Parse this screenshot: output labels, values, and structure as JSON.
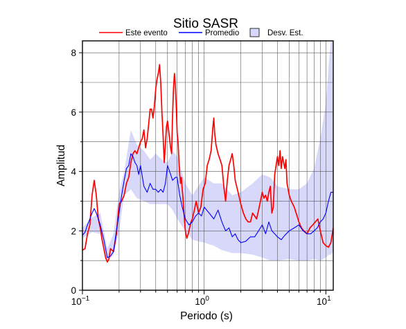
{
  "chart_data": {
    "type": "line",
    "title": "Sitio SASR",
    "xlabel": "Periodo (s)",
    "ylabel": "Amplitud",
    "xscale": "log",
    "xlim": [
      0.1,
      11.5
    ],
    "ylim": [
      0,
      8.4
    ],
    "grid": true,
    "legend_position": "top",
    "x_ticks": [
      {
        "value": 0.1,
        "base": "10",
        "exp": "−1"
      },
      {
        "value": 1,
        "base": "10",
        "exp": "0"
      },
      {
        "value": 10,
        "base": "10",
        "exp": "1"
      }
    ],
    "y_ticks": [
      0,
      2,
      4,
      6,
      8
    ],
    "y_tick_labels": [
      "0",
      "2",
      "4",
      "6",
      "8"
    ],
    "legend": [
      {
        "label": "Este evento",
        "kind": "line",
        "color": "#ff0000"
      },
      {
        "label": "Promedio",
        "kind": "line",
        "color": "#0000ff"
      },
      {
        "label": "Desv. Est.",
        "kind": "patch",
        "color": "#d8d8fa"
      }
    ],
    "band": {
      "name": "Desv. Est.",
      "color": "#d8d8fa",
      "x": [
        0.1,
        0.12,
        0.14,
        0.16,
        0.18,
        0.2,
        0.22,
        0.25,
        0.28,
        0.32,
        0.36,
        0.4,
        0.45,
        0.5,
        0.55,
        0.6,
        0.7,
        0.8,
        1.0,
        1.2,
        1.4,
        1.7,
        2.0,
        2.5,
        3.0,
        3.5,
        4.0,
        5.0,
        6.0,
        7.0,
        8.0,
        9.0,
        10.0,
        10.6,
        11.0,
        11.5
      ],
      "upper": [
        2.1,
        2.45,
        2.6,
        1.4,
        1.9,
        3.3,
        4.0,
        5.4,
        4.9,
        4.7,
        4.4,
        4.6,
        4.4,
        4.3,
        4.7,
        4.5,
        3.6,
        3.2,
        3.8,
        3.6,
        3.6,
        3.2,
        3.3,
        3.6,
        3.9,
        3.8,
        3.5,
        3.4,
        3.4,
        3.6,
        4.1,
        5.1,
        6.3,
        7.7,
        8.4,
        8.4
      ],
      "lower": [
        1.75,
        1.95,
        1.9,
        0.95,
        1.2,
        2.0,
        3.2,
        3.4,
        3.1,
        3.0,
        2.9,
        2.9,
        2.9,
        2.9,
        2.7,
        2.4,
        2.0,
        1.7,
        1.6,
        1.5,
        1.35,
        1.25,
        1.25,
        1.2,
        1.1,
        1.0,
        1.0,
        1.05,
        1.0,
        1.0,
        1.05,
        1.0,
        1.1,
        1.2,
        1.2,
        1.3
      ]
    },
    "series": [
      {
        "name": "Este evento",
        "color": "#ff0000",
        "x": [
          0.1,
          0.105,
          0.11,
          0.115,
          0.12,
          0.125,
          0.13,
          0.135,
          0.14,
          0.145,
          0.15,
          0.155,
          0.16,
          0.165,
          0.17,
          0.18,
          0.19,
          0.2,
          0.21,
          0.22,
          0.23,
          0.24,
          0.25,
          0.26,
          0.27,
          0.28,
          0.29,
          0.3,
          0.31,
          0.32,
          0.33,
          0.34,
          0.35,
          0.36,
          0.37,
          0.38,
          0.39,
          0.4,
          0.41,
          0.42,
          0.43,
          0.44,
          0.45,
          0.46,
          0.47,
          0.48,
          0.49,
          0.5,
          0.51,
          0.52,
          0.53,
          0.54,
          0.55,
          0.56,
          0.57,
          0.58,
          0.59,
          0.6,
          0.61,
          0.62,
          0.63,
          0.64,
          0.65,
          0.66,
          0.67,
          0.68,
          0.7,
          0.72,
          0.74,
          0.76,
          0.78,
          0.8,
          0.83,
          0.86,
          0.9,
          0.94,
          0.98,
          1.02,
          1.06,
          1.1,
          1.14,
          1.18,
          1.2,
          1.22,
          1.25,
          1.3,
          1.35,
          1.4,
          1.45,
          1.5,
          1.55,
          1.6,
          1.65,
          1.7,
          1.75,
          1.8,
          1.9,
          2.0,
          2.1,
          2.2,
          2.3,
          2.4,
          2.5,
          2.6,
          2.7,
          2.8,
          2.9,
          3.0,
          3.1,
          3.2,
          3.3,
          3.4,
          3.5,
          3.6,
          3.7,
          3.8,
          3.9,
          4.0,
          4.1,
          4.2,
          4.3,
          4.4,
          4.5,
          4.6,
          4.7,
          4.8,
          5.0,
          5.2,
          5.5,
          5.8,
          6.0,
          6.3,
          6.6,
          7.0,
          7.4,
          7.8,
          8.2,
          8.6,
          9.0,
          9.5,
          10.0,
          10.5,
          11.0,
          11.5
        ],
        "y": [
          1.35,
          1.4,
          1.9,
          2.2,
          3.2,
          3.7,
          3.2,
          2.4,
          2.1,
          1.7,
          1.4,
          1.1,
          0.95,
          1.05,
          1.4,
          1.3,
          1.9,
          2.9,
          3.0,
          3.2,
          3.6,
          3.8,
          4.3,
          4.6,
          4.7,
          4.6,
          4.8,
          5.0,
          5.1,
          5.4,
          4.8,
          5.1,
          5.6,
          6.1,
          6.1,
          5.8,
          6.2,
          6.8,
          7.1,
          7.3,
          7.6,
          7.0,
          6.0,
          5.2,
          4.3,
          4.9,
          5.5,
          5.7,
          5.4,
          5.1,
          4.8,
          4.6,
          5.9,
          6.8,
          7.3,
          6.9,
          6.2,
          5.3,
          5.0,
          4.4,
          3.9,
          3.6,
          3.8,
          3.4,
          3.1,
          2.7,
          2.0,
          1.75,
          1.9,
          2.1,
          2.3,
          2.4,
          2.7,
          3.0,
          2.6,
          2.8,
          3.4,
          3.6,
          4.2,
          4.4,
          4.7,
          5.5,
          5.8,
          5.3,
          4.9,
          4.6,
          4.4,
          4.2,
          3.5,
          3.0,
          3.7,
          4.2,
          4.4,
          4.6,
          4.2,
          3.7,
          3.3,
          2.9,
          2.6,
          2.4,
          2.3,
          2.3,
          2.6,
          2.5,
          2.4,
          2.7,
          3.0,
          3.3,
          3.1,
          3.2,
          3.0,
          3.3,
          3.5,
          2.6,
          2.8,
          3.9,
          4.2,
          4.5,
          4.2,
          4.7,
          4.1,
          4.5,
          4.3,
          4.1,
          4.4,
          3.6,
          3.2,
          3.0,
          2.8,
          2.5,
          2.3,
          2.1,
          2.0,
          1.9,
          2.1,
          2.2,
          2.3,
          2.4,
          2.0,
          1.6,
          1.5,
          1.45,
          1.6,
          2.1
        ]
      },
      {
        "name": "Promedio",
        "color": "#0000ff",
        "x": [
          0.1,
          0.105,
          0.11,
          0.115,
          0.12,
          0.125,
          0.13,
          0.135,
          0.14,
          0.15,
          0.16,
          0.17,
          0.18,
          0.19,
          0.2,
          0.21,
          0.22,
          0.23,
          0.24,
          0.25,
          0.26,
          0.27,
          0.28,
          0.29,
          0.3,
          0.32,
          0.34,
          0.36,
          0.38,
          0.4,
          0.42,
          0.44,
          0.46,
          0.48,
          0.5,
          0.52,
          0.55,
          0.58,
          0.6,
          0.63,
          0.66,
          0.7,
          0.75,
          0.8,
          0.85,
          0.9,
          0.95,
          1.0,
          1.1,
          1.2,
          1.3,
          1.4,
          1.5,
          1.6,
          1.7,
          1.8,
          1.9,
          2.0,
          2.2,
          2.4,
          2.6,
          2.8,
          3.0,
          3.2,
          3.4,
          3.6,
          3.8,
          4.0,
          4.3,
          4.6,
          5.0,
          5.5,
          6.0,
          6.5,
          7.0,
          7.5,
          8.0,
          8.5,
          9.0,
          9.5,
          10.0,
          10.5,
          11.0,
          11.5
        ],
        "y": [
          1.85,
          1.95,
          2.2,
          2.4,
          2.6,
          2.75,
          2.6,
          2.4,
          2.2,
          1.7,
          1.1,
          1.15,
          1.3,
          2.0,
          2.6,
          3.2,
          3.7,
          4.1,
          4.2,
          4.6,
          4.5,
          4.3,
          4.2,
          3.9,
          4.2,
          3.5,
          3.3,
          3.6,
          3.4,
          3.4,
          3.3,
          3.4,
          3.3,
          3.6,
          4.2,
          4.0,
          3.7,
          3.8,
          3.8,
          3.2,
          2.8,
          2.4,
          2.2,
          2.3,
          2.5,
          2.6,
          2.5,
          2.8,
          2.6,
          2.4,
          2.7,
          2.3,
          2.0,
          2.1,
          1.8,
          1.9,
          1.7,
          1.6,
          1.65,
          1.8,
          1.8,
          2.0,
          2.2,
          1.9,
          2.3,
          2.0,
          1.9,
          1.8,
          1.7,
          1.85,
          2.0,
          2.1,
          2.2,
          2.0,
          1.9,
          1.9,
          2.0,
          2.1,
          2.3,
          2.4,
          2.6,
          3.0,
          3.3,
          3.3
        ]
      }
    ]
  }
}
